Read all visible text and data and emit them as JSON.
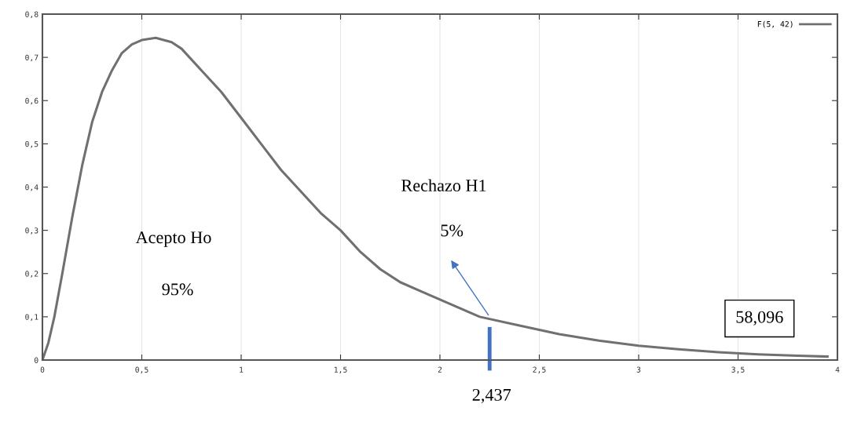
{
  "chart_data": {
    "type": "line",
    "series": [
      {
        "name": "F(5, 42)",
        "color": "#707070",
        "x": [
          0,
          0.03,
          0.06,
          0.1,
          0.15,
          0.2,
          0.25,
          0.3,
          0.35,
          0.4,
          0.45,
          0.5,
          0.57,
          0.65,
          0.7,
          0.8,
          0.9,
          1.0,
          1.1,
          1.2,
          1.3,
          1.4,
          1.5,
          1.6,
          1.7,
          1.8,
          1.9,
          2.0,
          2.2,
          2.4,
          2.6,
          2.8,
          3.0,
          3.2,
          3.4,
          3.6,
          3.8,
          3.95
        ],
        "values": [
          0,
          0.04,
          0.1,
          0.2,
          0.33,
          0.45,
          0.55,
          0.62,
          0.67,
          0.71,
          0.73,
          0.74,
          0.745,
          0.735,
          0.72,
          0.67,
          0.62,
          0.56,
          0.5,
          0.44,
          0.39,
          0.34,
          0.3,
          0.25,
          0.21,
          0.18,
          0.16,
          0.14,
          0.1,
          0.08,
          0.06,
          0.045,
          0.033,
          0.025,
          0.018,
          0.013,
          0.01,
          0.008
        ]
      }
    ],
    "xlim": [
      0,
      4
    ],
    "xticks": [
      0,
      {
        "value": 0.5,
        "label": "0,5"
      },
      1,
      {
        "value": 1.5,
        "label": "1,5"
      },
      2,
      {
        "value": 2.5,
        "label": "2,5"
      },
      3,
      {
        "value": 3.5,
        "label": "3,5"
      },
      4
    ],
    "ylim": [
      0,
      0.8
    ],
    "yticks": [
      0,
      {
        "value": 0.1,
        "label": "0,1"
      },
      {
        "value": 0.2,
        "label": "0,2"
      },
      {
        "value": 0.3,
        "label": "0,3"
      },
      {
        "value": 0.4,
        "label": "0,4"
      },
      {
        "value": 0.5,
        "label": "0,5"
      },
      {
        "value": 0.6,
        "label": "0,6"
      },
      {
        "value": 0.7,
        "label": "0,7"
      },
      {
        "value": 0.8,
        "label": "0,8"
      }
    ],
    "grid": "x",
    "legend": "top right",
    "line_style": "solid",
    "marker": "none",
    "ref_lines": [
      {
        "axis": "x",
        "value": 2.25,
        "color": "#4472c4",
        "line_style": "solid"
      }
    ],
    "annotations": [
      "Acepto Ho",
      "95%",
      "Rechazo H1",
      "5%",
      "58,096",
      "2,437"
    ]
  }
}
